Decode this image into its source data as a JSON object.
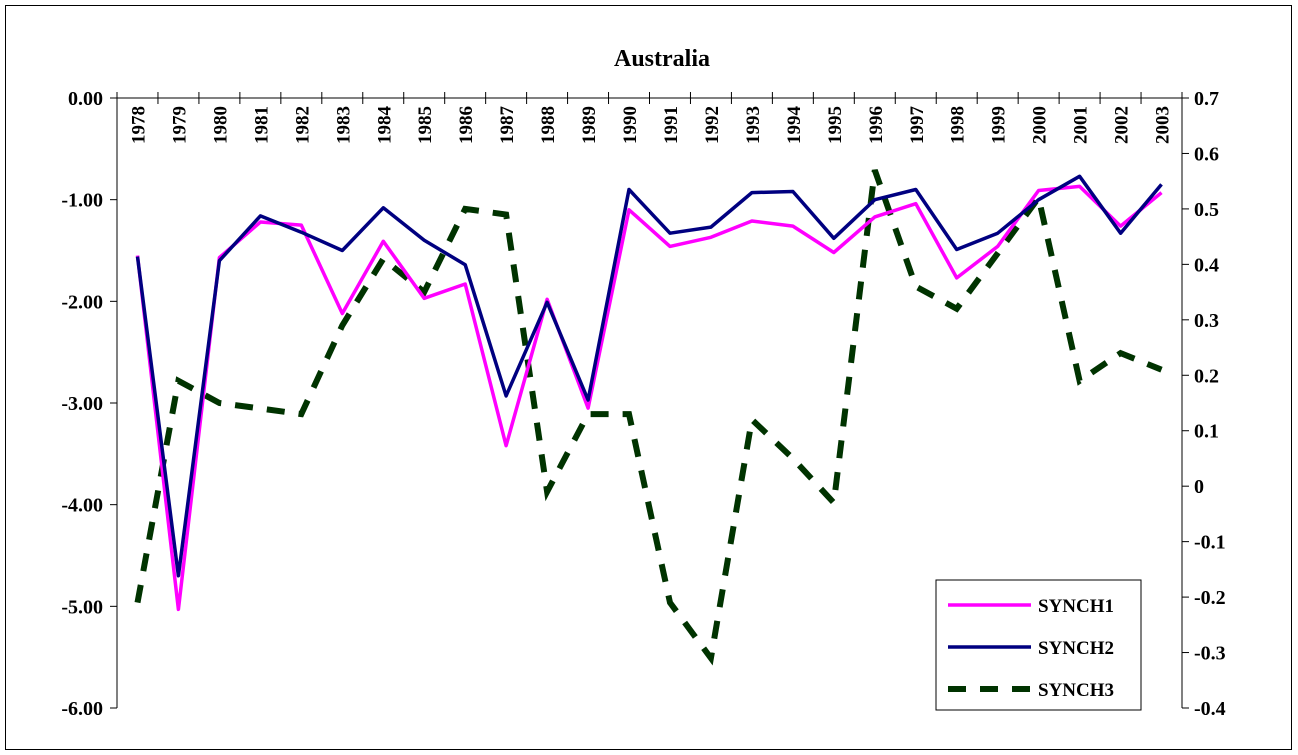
{
  "chart_data": {
    "type": "line",
    "title": "Australia",
    "categories": [
      "1978",
      "1979",
      "1980",
      "1981",
      "1982",
      "1983",
      "1984",
      "1985",
      "1986",
      "1987",
      "1988",
      "1989",
      "1990",
      "1991",
      "1992",
      "1993",
      "1994",
      "1995",
      "1996",
      "1997",
      "1998",
      "1999",
      "2000",
      "2001",
      "2002",
      "2003"
    ],
    "left_axis": {
      "min": -6,
      "max": 0,
      "ticks": [
        "0.00",
        "-1.00",
        "-2.00",
        "-3.00",
        "-4.00",
        "-5.00",
        "-6.00"
      ],
      "tick_values": [
        0,
        -1,
        -2,
        -3,
        -4,
        -5,
        -6
      ]
    },
    "right_axis": {
      "min": -0.4,
      "max": 0.7,
      "ticks": [
        "0.7",
        "0.6",
        "0.5",
        "0.4",
        "0.3",
        "0.2",
        "0.1",
        "0",
        "-0.1",
        "-0.2",
        "-0.3",
        "-0.4"
      ],
      "tick_values": [
        0.7,
        0.6,
        0.5,
        0.4,
        0.3,
        0.2,
        0.1,
        0,
        -0.1,
        -0.2,
        -0.3,
        -0.4
      ]
    },
    "series": [
      {
        "name": "SYNCH1",
        "axis": "left",
        "color": "#ff00ff",
        "style": "solid",
        "values": [
          -1.55,
          -5.03,
          -1.57,
          -1.22,
          -1.25,
          -2.12,
          -1.41,
          -1.97,
          -1.83,
          -3.42,
          -1.98,
          -3.05,
          -1.1,
          -1.46,
          -1.37,
          -1.21,
          -1.26,
          -1.52,
          -1.17,
          -1.04,
          -1.77,
          -1.46,
          -0.91,
          -0.87,
          -1.26,
          -0.93
        ]
      },
      {
        "name": "SYNCH2",
        "axis": "left",
        "color": "#000080",
        "style": "solid",
        "values": [
          -1.56,
          -4.7,
          -1.6,
          -1.16,
          -1.32,
          -1.5,
          -1.08,
          -1.4,
          -1.64,
          -2.93,
          -2.01,
          -2.97,
          -0.9,
          -1.33,
          -1.27,
          -0.93,
          -0.92,
          -1.38,
          -1.0,
          -0.9,
          -1.49,
          -1.33,
          -1.0,
          -0.77,
          -1.33,
          -0.85
        ]
      },
      {
        "name": "SYNCH3",
        "axis": "right",
        "color": "#003300",
        "style": "dashed",
        "values": [
          -0.21,
          0.19,
          0.15,
          0.14,
          0.13,
          0.29,
          0.41,
          0.35,
          0.5,
          0.49,
          -0.01,
          0.13,
          0.13,
          -0.21,
          -0.31,
          0.12,
          0.05,
          -0.03,
          0.57,
          0.36,
          0.32,
          0.42,
          0.52,
          0.19,
          0.24,
          0.21
        ]
      }
    ],
    "legend": {
      "placement": "bottom-right"
    },
    "grid": false
  }
}
